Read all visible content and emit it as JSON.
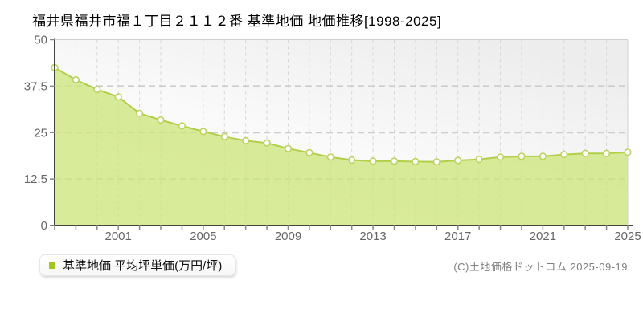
{
  "header": {
    "title": "福井県福井市福１丁目２１１２番 基準地価 地価推移[1998-2025]"
  },
  "chart_data": {
    "type": "area",
    "title": "福井県福井市福１丁目２１１２番 基準地価 地価推移[1998-2025]",
    "x": [
      1998,
      1999,
      2000,
      2001,
      2002,
      2003,
      2004,
      2005,
      2006,
      2007,
      2008,
      2009,
      2010,
      2011,
      2012,
      2013,
      2014,
      2015,
      2016,
      2017,
      2018,
      2019,
      2020,
      2021,
      2022,
      2023,
      2024,
      2025
    ],
    "series": [
      {
        "name": "基準地価 平均坪単価(万円/坪)",
        "values": [
          42.5,
          39.2,
          36.6,
          34.6,
          30.2,
          28.4,
          26.8,
          25.3,
          23.9,
          22.8,
          22.2,
          20.7,
          19.6,
          18.4,
          17.6,
          17.3,
          17.3,
          17.2,
          17.1,
          17.5,
          17.8,
          18.4,
          18.6,
          18.6,
          19.1,
          19.4,
          19.4,
          19.7
        ]
      }
    ],
    "ylabel": "万円/坪",
    "xlabel": "",
    "ylim": [
      0,
      50
    ],
    "yticks": [
      0,
      12.5,
      25,
      37.5,
      50
    ],
    "xtick_labels": [
      "2001",
      "2005",
      "2009",
      "2013",
      "2017",
      "2021",
      "2025"
    ],
    "grid": true,
    "legend_position": "bottom-left",
    "colors": {
      "fill": "#cde67c",
      "fill_opacity": "0.78",
      "line": "#b2cf4a",
      "marker_fill": "#ffffff",
      "marker_stroke": "#bdd35f",
      "axis": "#444444",
      "tick": "#888888",
      "grid_h": "#cdcdcd",
      "grid_v": "#d6d6d6",
      "border": "#d0d0d0",
      "tick_label": "#666666",
      "bg_top_right": "#ededed",
      "bg_bottom_left": "#ffffff"
    }
  },
  "legend": {
    "marker_color": "#a3c61a",
    "label": "基準地価 平均坪単価(万円/坪)"
  },
  "footer": {
    "copyright": "(C)土地価格ドットコム 2025-09-19"
  }
}
